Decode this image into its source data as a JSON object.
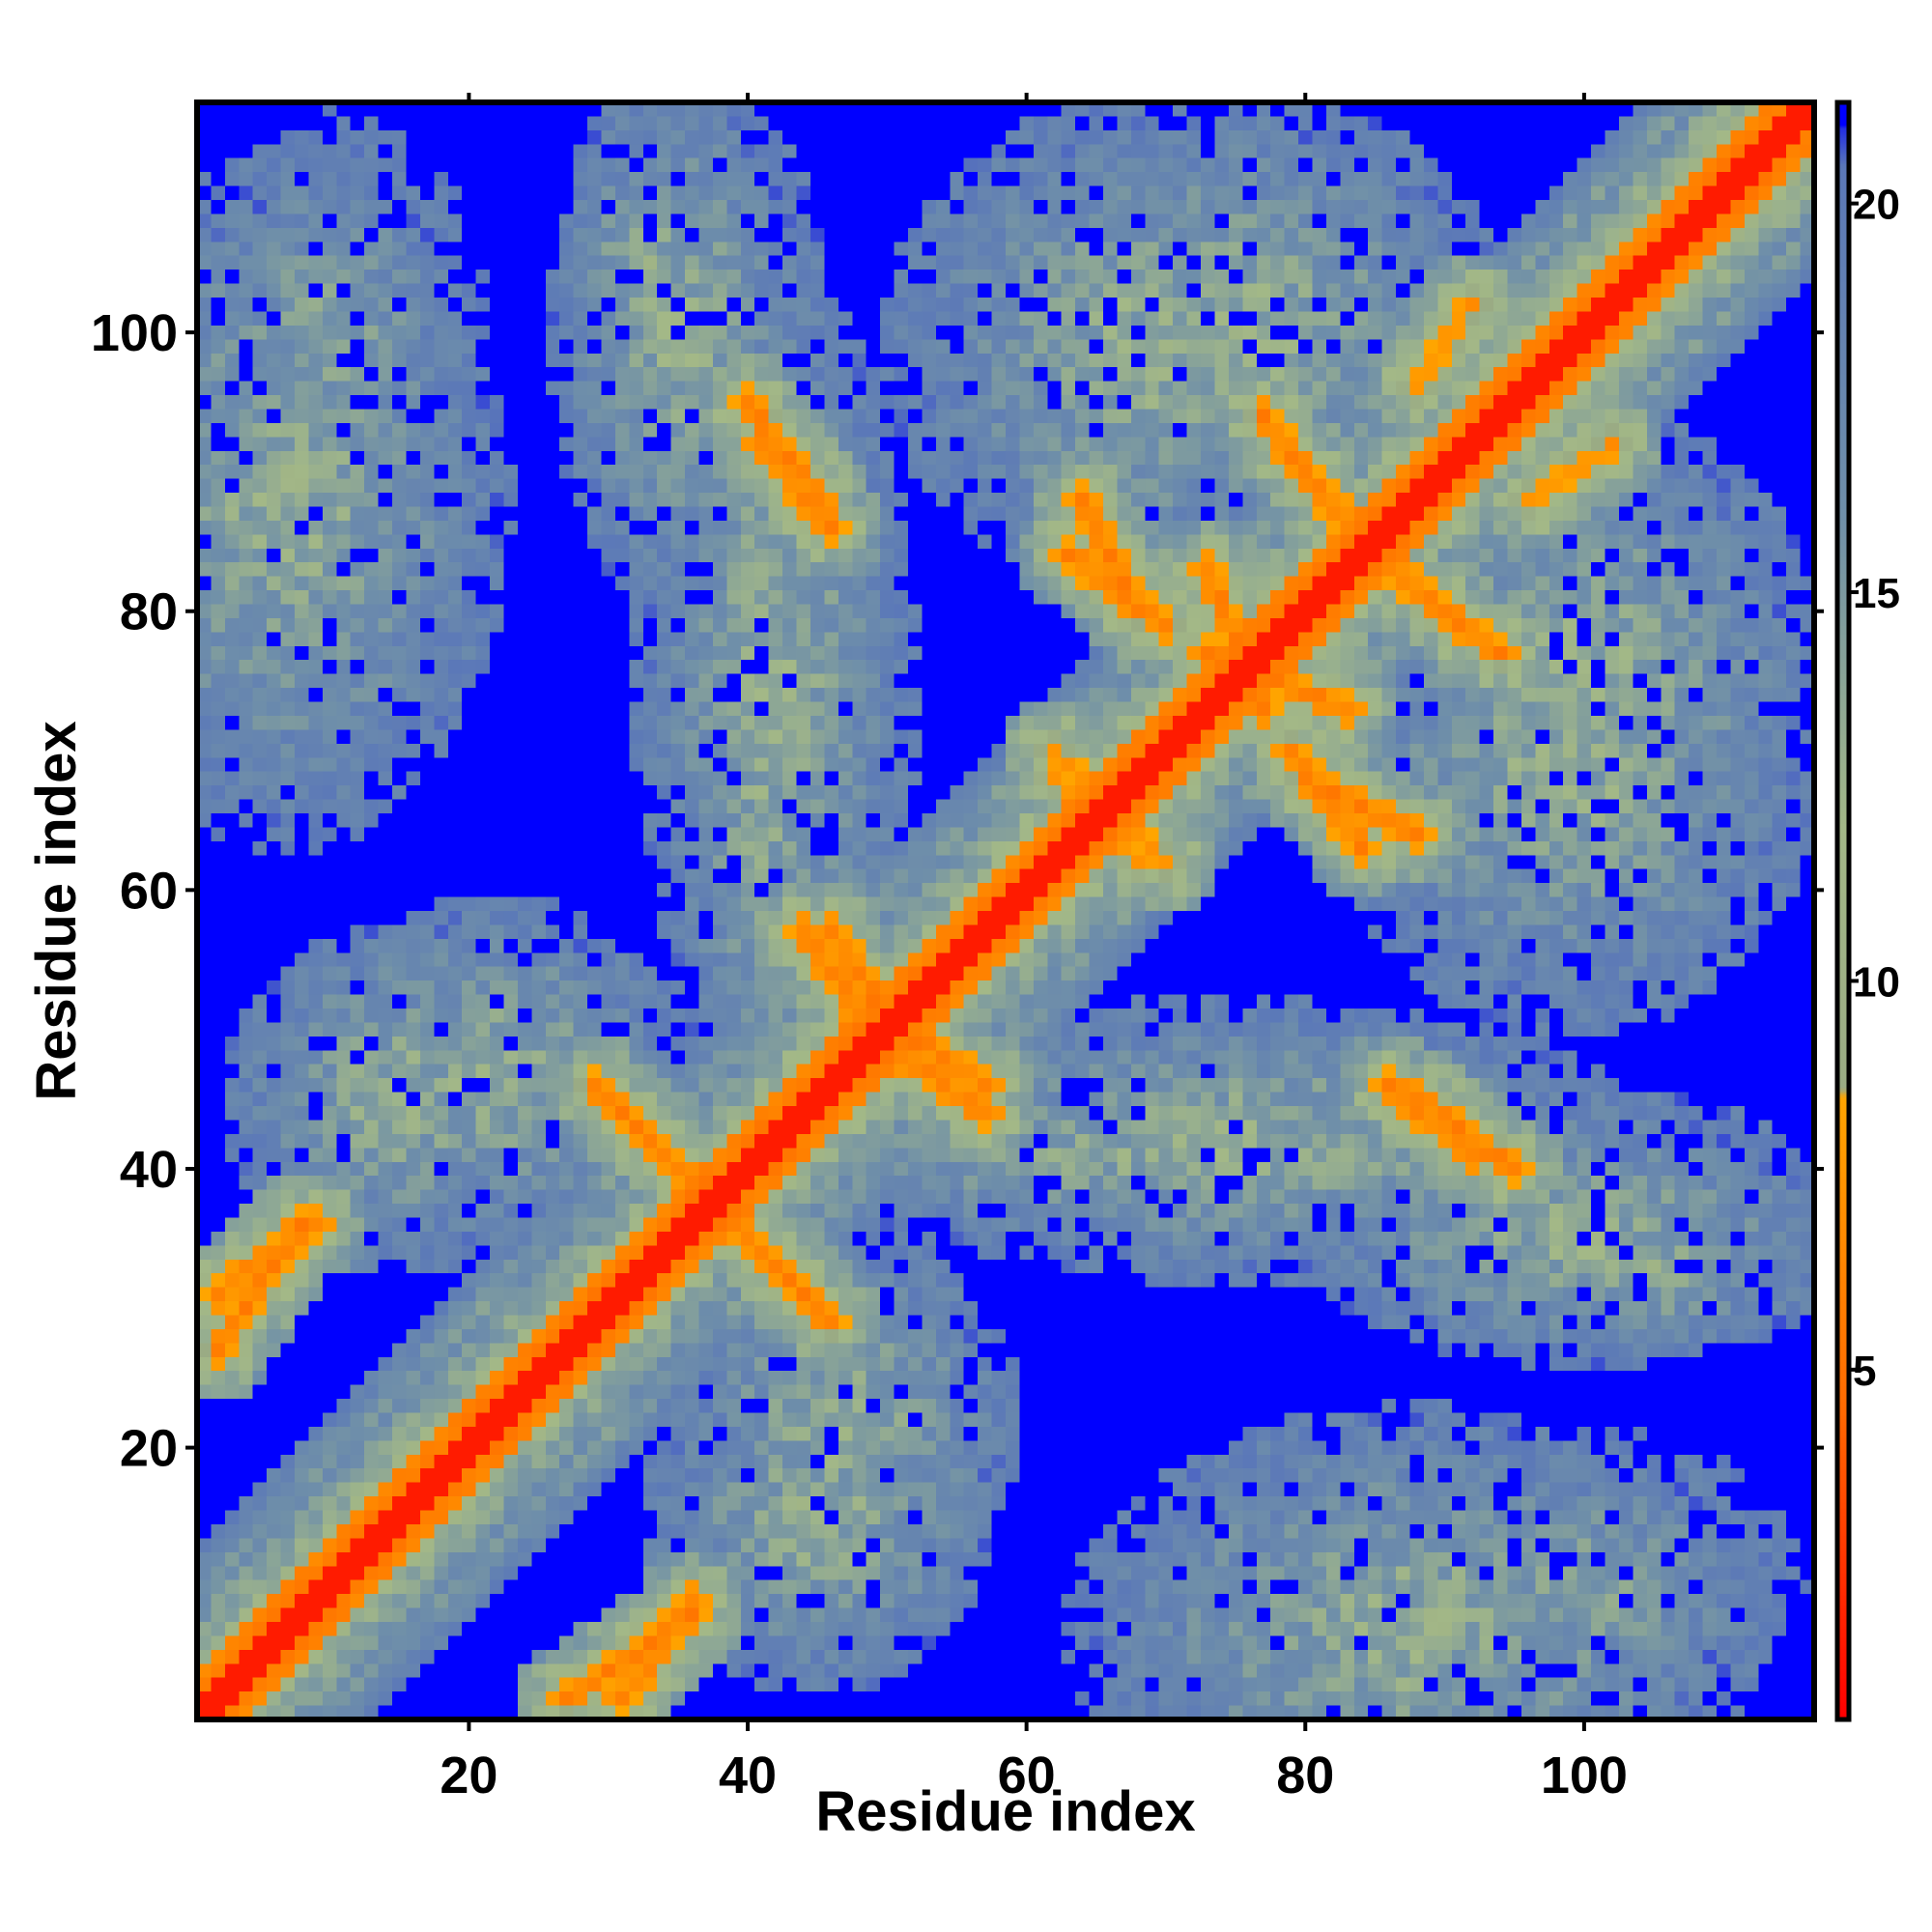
{
  "chart_data": {
    "type": "heatmap",
    "title": "",
    "xlabel": "Residue index",
    "ylabel": "Residue index",
    "n_residues": 116,
    "xlim": [
      1,
      116
    ],
    "ylim": [
      1,
      116
    ],
    "xticks": [
      20,
      40,
      60,
      80,
      100
    ],
    "yticks": [
      20,
      40,
      60,
      80,
      100
    ],
    "colorbar": {
      "range": [
        0.5,
        21.3
      ],
      "ticks": [
        5,
        10,
        15,
        20
      ],
      "stops": [
        {
          "value": 0.5,
          "color": "#ff0000"
        },
        {
          "value": 4.5,
          "color": "#ff6a00"
        },
        {
          "value": 8.5,
          "color": "#ffa500"
        },
        {
          "value": 8.6,
          "color": "#9aab84"
        },
        {
          "value": 12,
          "color": "#a3b887"
        },
        {
          "value": 16,
          "color": "#6f8fa9"
        },
        {
          "value": 20.5,
          "color": "#5b78b8"
        },
        {
          "value": 21.3,
          "color": "#0000ff"
        }
      ]
    },
    "cap_value": 21.3,
    "background_color": "#0000ff",
    "contact_features": [
      {
        "kind": "diagonal"
      },
      {
        "kind": "parallel_band",
        "from": [
          1,
          2
        ],
        "to": [
          27,
          28
        ],
        "value": 7,
        "width": 1.2
      },
      {
        "kind": "parallel_band",
        "from": [
          92,
          93
        ],
        "to": [
          114,
          116
        ],
        "value": 7,
        "width": 1.2
      },
      {
        "kind": "antiparallel",
        "from": [
          30,
          45
        ],
        "to": [
          38,
          37
        ],
        "value": 6,
        "width": 0.8
      },
      {
        "kind": "antiparallel",
        "from": [
          38,
          37
        ],
        "to": [
          46,
          29
        ],
        "value": 6,
        "width": 0.8
      },
      {
        "kind": "antiparallel",
        "from": [
          41,
          92
        ],
        "to": [
          46,
          86
        ],
        "value": 6,
        "width": 0.8
      },
      {
        "kind": "antiparallel",
        "from": [
          46,
          57
        ],
        "to": [
          52,
          49
        ],
        "value": 6,
        "width": 0.8
      },
      {
        "kind": "antiparallel",
        "from": [
          50,
          49
        ],
        "to": [
          57,
          44
        ],
        "value": 6,
        "width": 0.8
      },
      {
        "kind": "antiparallel",
        "from": [
          63,
          84
        ],
        "to": [
          70,
          79
        ],
        "value": 6,
        "width": 0.8
      },
      {
        "kind": "antiparallel",
        "from": [
          73,
          77
        ],
        "to": [
          83,
          73
        ],
        "value": 6,
        "width": 0.8
      },
      {
        "kind": "antiparallel",
        "from": [
          79,
          91
        ],
        "to": [
          85,
          84
        ],
        "value": 6,
        "width": 0.8
      },
      {
        "kind": "antiparallel",
        "from": [
          86,
          83
        ],
        "to": [
          94,
          77
        ],
        "value": 6,
        "width": 0.8
      },
      {
        "kind": "antiparallel",
        "from": [
          80,
          68
        ],
        "to": [
          88,
          64
        ],
        "value": 6,
        "width": 0.8
      },
      {
        "kind": "antiparallel",
        "from": [
          88,
          45
        ],
        "to": [
          95,
          40
        ],
        "value": 6,
        "width": 0.8
      },
      {
        "kind": "antiparallel",
        "from": [
          2,
          31
        ],
        "to": [
          9,
          36
        ],
        "value": 6,
        "width": 0.8
      },
      {
        "kind": "antiparallel",
        "from": [
          27,
          2
        ],
        "to": [
          36,
          8
        ],
        "value": 6,
        "width": 0.8
      },
      {
        "kind": "antiparallel",
        "from": [
          62,
          70
        ],
        "to": [
          68,
          62
        ],
        "value": 7,
        "width": 0.8
      },
      {
        "kind": "antiparallel",
        "from": [
          96,
          88
        ],
        "to": [
          102,
          92
        ],
        "value": 7,
        "width": 0.8
      },
      {
        "kind": "hotspot",
        "center": [
          7,
          88
        ],
        "radius": [
          14,
          22
        ],
        "value": 13
      },
      {
        "kind": "hotspot",
        "center": [
          33,
          105
        ],
        "radius": [
          6,
          9
        ],
        "value": 13
      },
      {
        "kind": "hotspot",
        "center": [
          41,
          74
        ],
        "radius": [
          6,
          36
        ],
        "value": 13
      },
      {
        "kind": "hotspot",
        "center": [
          75,
          100
        ],
        "radius": [
          18,
          15
        ],
        "value": 13
      },
      {
        "kind": "hotspot",
        "center": [
          99,
          70
        ],
        "radius": [
          16,
          18
        ],
        "value": 13
      },
      {
        "kind": "hotspot",
        "center": [
          22,
          47
        ],
        "radius": [
          12,
          11
        ],
        "value": 13
      },
      {
        "kind": "hotspot",
        "center": [
          75,
          42
        ],
        "radius": [
          26,
          9
        ],
        "value": 13
      },
      {
        "kind": "hotspot",
        "center": [
          100,
          35
        ],
        "radius": [
          18,
          8
        ],
        "value": 13
      },
      {
        "kind": "hotspot",
        "center": [
          45,
          15
        ],
        "radius": [
          11,
          11
        ],
        "value": 13
      },
      {
        "kind": "hotspot",
        "center": [
          100,
          10
        ],
        "radius": [
          14,
          10
        ],
        "value": 14
      }
    ]
  }
}
